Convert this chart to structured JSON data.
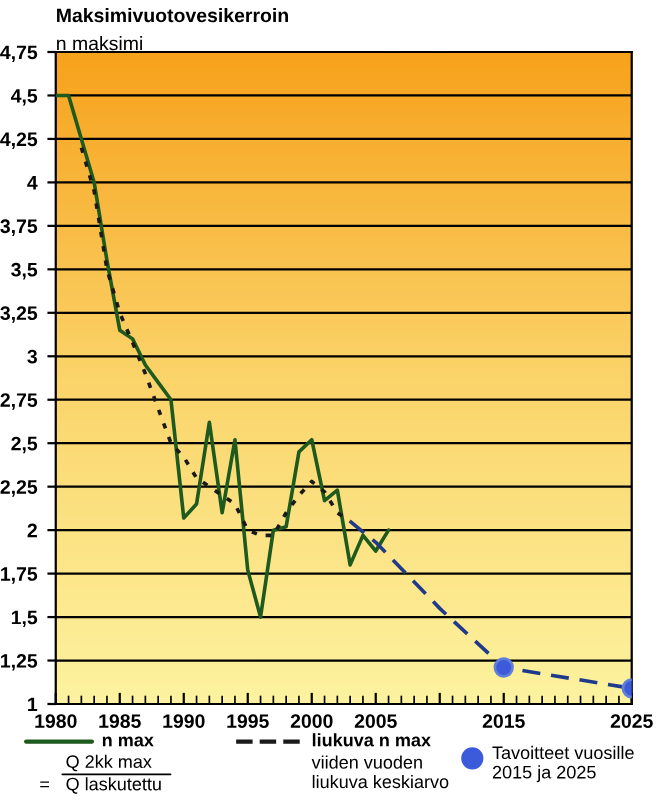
{
  "chart_data": {
    "type": "line",
    "title": "Maksimivuotovesikerroin",
    "subtitle": "n maksimi",
    "xlim": [
      1980,
      2025
    ],
    "xticks": [
      1980,
      1985,
      1990,
      1995,
      2000,
      2005,
      {
        "value": 2010,
        "label": null
      },
      2015,
      2025
    ],
    "ylim": [
      1,
      4.75
    ],
    "yticks": [
      {
        "value": 1,
        "label": "1"
      },
      {
        "value": 1.25,
        "label": "1,25"
      },
      {
        "value": 1.5,
        "label": "1,5"
      },
      {
        "value": 1.75,
        "label": "1,75"
      },
      {
        "value": 2,
        "label": "2"
      },
      {
        "value": 2.25,
        "label": "2,25"
      },
      {
        "value": 2.5,
        "label": "2,5"
      },
      {
        "value": 2.75,
        "label": "2,75"
      },
      {
        "value": 3,
        "label": "3"
      },
      {
        "value": 3.25,
        "label": "3,25"
      },
      {
        "value": 3.5,
        "label": "3,5"
      },
      {
        "value": 3.75,
        "label": "3,75"
      },
      {
        "value": 4,
        "label": "4"
      },
      {
        "value": 4.25,
        "label": "4,25"
      },
      {
        "value": 4.5,
        "label": "4,5"
      },
      {
        "value": 4.75,
        "label": "4,75"
      }
    ],
    "grid": "y",
    "legend": "bottom",
    "series": [
      {
        "name": "n max",
        "color": "#1e5a1e",
        "line_style": "solid",
        "marker": "none",
        "x": [
          1980,
          1981,
          1982,
          1983,
          1984,
          1985,
          1986,
          1987,
          1988,
          1989,
          1990,
          1991,
          1992,
          1993,
          1994,
          1995,
          1996,
          1997,
          1998,
          1999,
          2000,
          2001,
          2002,
          2003,
          2004,
          2005,
          2006
        ],
        "values": [
          4.5,
          4.5,
          4.25,
          4.0,
          3.55,
          3.15,
          3.1,
          2.95,
          2.85,
          2.75,
          2.07,
          2.15,
          2.62,
          2.1,
          2.52,
          1.77,
          1.5,
          2.0,
          2.02,
          2.45,
          2.52,
          2.17,
          2.23,
          1.8,
          1.97,
          1.88,
          2.0
        ]
      },
      {
        "name": "liukuva n max",
        "color": "#1a1a1a",
        "line_style": "dotted",
        "marker": "none",
        "x": [
          1982,
          1983,
          1984,
          1985,
          1986,
          1987,
          1988,
          1989,
          1990,
          1991,
          1992,
          1993,
          1994,
          1995,
          1996,
          1997,
          1998,
          1999,
          2000,
          2001,
          2002,
          2003
        ],
        "values": [
          4.2,
          3.95,
          3.5,
          3.25,
          3.08,
          2.9,
          2.7,
          2.5,
          2.42,
          2.3,
          2.25,
          2.2,
          2.15,
          2.0,
          1.97,
          1.97,
          2.1,
          2.2,
          2.28,
          2.22,
          2.1,
          2.05
        ]
      },
      {
        "color": "#1f3a8a",
        "line_style": "dashed",
        "marker": "none",
        "x": [
          2003,
          2005,
          2010,
          2015,
          2025
        ],
        "values": [
          2.05,
          1.93,
          1.55,
          1.21,
          1.09
        ]
      },
      {
        "name": "Tavoitteet vuosille\n2015 ja 2025",
        "type": "scatter",
        "color": "#3b5bdb",
        "marker": "circle",
        "x": [
          2015,
          2025
        ],
        "values": [
          1.21,
          1.09
        ]
      }
    ],
    "annotations": [
      "Q 2kk max",
      "Q laskutettu",
      "viiden vuoden\nliukuva keskiarvo",
      "="
    ]
  }
}
